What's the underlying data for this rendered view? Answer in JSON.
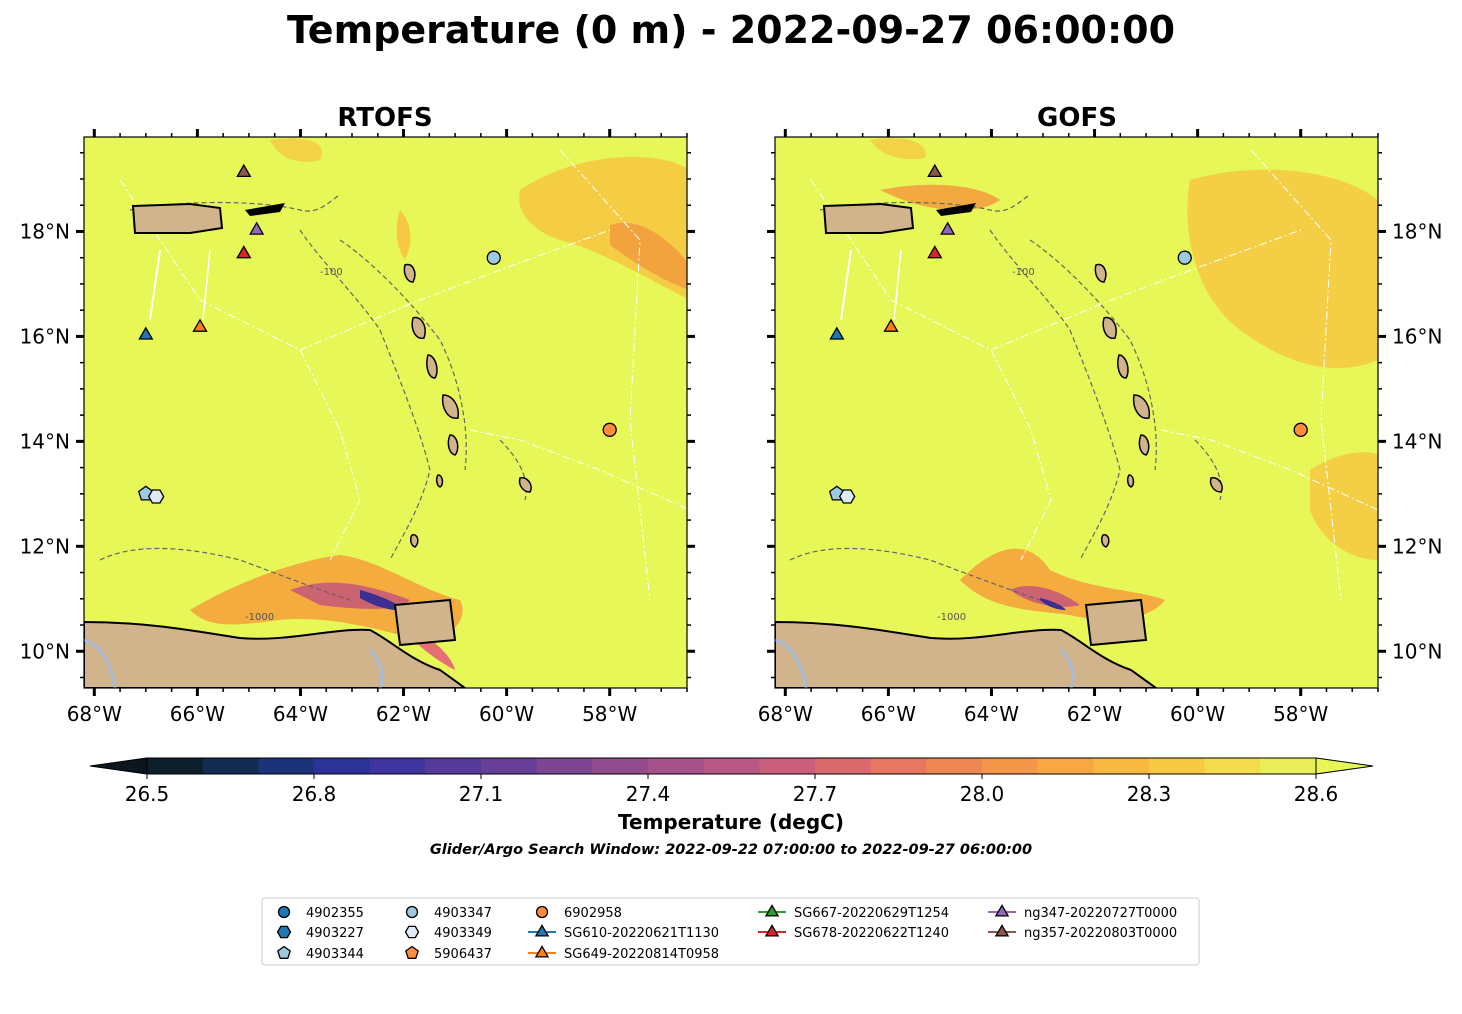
{
  "title": "Temperature (0 m) - 2022-09-27 06:00:00",
  "panels": [
    {
      "title": "RTOFS"
    },
    {
      "title": "GOFS"
    }
  ],
  "map": {
    "lon_range": [
      -68.2,
      -56.5
    ],
    "lat_range": [
      9.3,
      19.8
    ],
    "lon_ticks": [
      -68,
      -66,
      -64,
      -62,
      -60,
      -58
    ],
    "lon_tick_labels": [
      "68°W",
      "66°W",
      "64°W",
      "62°W",
      "60°W",
      "58°W"
    ],
    "lat_ticks": [
      10,
      12,
      14,
      16,
      18
    ],
    "lat_tick_labels": [
      "10°N",
      "12°N",
      "14°N",
      "16°N",
      "18°N"
    ],
    "contour_labels": [
      "-100",
      "-1000"
    ],
    "ocean_color": "#e6f757",
    "land_color": "#d2b48c",
    "lake_color": "#a6bddb"
  },
  "colorbar": {
    "label": "Temperature (degC)",
    "min": 26.5,
    "max": 28.6,
    "step": 0.1,
    "ticks": [
      26.5,
      26.8,
      27.1,
      27.4,
      27.7,
      28.0,
      28.3,
      28.6
    ],
    "tick_labels": [
      "26.5",
      "26.8",
      "27.1",
      "27.4",
      "27.7",
      "28.0",
      "28.3",
      "28.6"
    ],
    "extend": "both"
  },
  "search_window": "Glider/Argo Search Window: 2022-09-22 07:00:00 to 2022-09-27 06:00:00",
  "markers": [
    {
      "id": "4903344",
      "lon": -67.0,
      "lat": 13.0,
      "shape": "pentagon",
      "color": "#9ecae1"
    },
    {
      "id": "4903349",
      "lon": -66.8,
      "lat": 12.95,
      "shape": "hexagon",
      "color": "#deebf7"
    },
    {
      "id": "4903347",
      "lon": -60.25,
      "lat": 17.5,
      "shape": "circle",
      "color": "#9ecae1"
    },
    {
      "id": "6902958",
      "lon": -58.0,
      "lat": 14.22,
      "shape": "circle",
      "color": "#fd8d3c"
    },
    {
      "id": "SG610-20220621T1130",
      "lon": -67.0,
      "lat": 16.05,
      "shape": "triangle",
      "color": "#1f77b4"
    },
    {
      "id": "SG649-20220814T0958",
      "lon": -65.95,
      "lat": 16.2,
      "shape": "triangle",
      "color": "#ff7f0e"
    },
    {
      "id": "SG678-20220622T1240",
      "lon": -65.1,
      "lat": 17.6,
      "shape": "triangle",
      "color": "#d62728"
    },
    {
      "id": "ng347-20220727T0000",
      "lon": -64.85,
      "lat": 18.05,
      "shape": "triangle",
      "color": "#9467bd"
    },
    {
      "id": "ng357-20220803T0000",
      "lon": -65.1,
      "lat": 19.15,
      "shape": "triangle",
      "color": "#8c564b"
    }
  ],
  "legend": [
    {
      "label": "4902355",
      "shape": "circle",
      "color": "#1f77b4",
      "line": false
    },
    {
      "label": "4903227",
      "shape": "hexagon",
      "color": "#1f77b4",
      "line": false
    },
    {
      "label": "4903344",
      "shape": "pentagon",
      "color": "#9ecae1",
      "line": false
    },
    {
      "label": "4903347",
      "shape": "circle",
      "color": "#9ecae1",
      "line": false
    },
    {
      "label": "4903349",
      "shape": "hexagon",
      "color": "#deebf7",
      "line": false
    },
    {
      "label": "5906437",
      "shape": "pentagon",
      "color": "#fd8d3c",
      "line": false
    },
    {
      "label": "6902958",
      "shape": "circle",
      "color": "#fd8d3c",
      "line": false
    },
    {
      "label": "SG610-20220621T1130",
      "shape": "triangle",
      "color": "#1f77b4",
      "line": true
    },
    {
      "label": "SG649-20220814T0958",
      "shape": "triangle",
      "color": "#ff7f0e",
      "line": true
    },
    {
      "label": "SG667-20220629T1254",
      "shape": "triangle",
      "color": "#2ca02c",
      "line": true
    },
    {
      "label": "SG678-20220622T1240",
      "shape": "triangle",
      "color": "#d62728",
      "line": true
    },
    {
      "label": "ng347-20220727T0000",
      "shape": "triangle",
      "color": "#9467bd",
      "line": true
    },
    {
      "label": "ng357-20220803T0000",
      "shape": "triangle",
      "color": "#8c564b",
      "line": true
    }
  ]
}
